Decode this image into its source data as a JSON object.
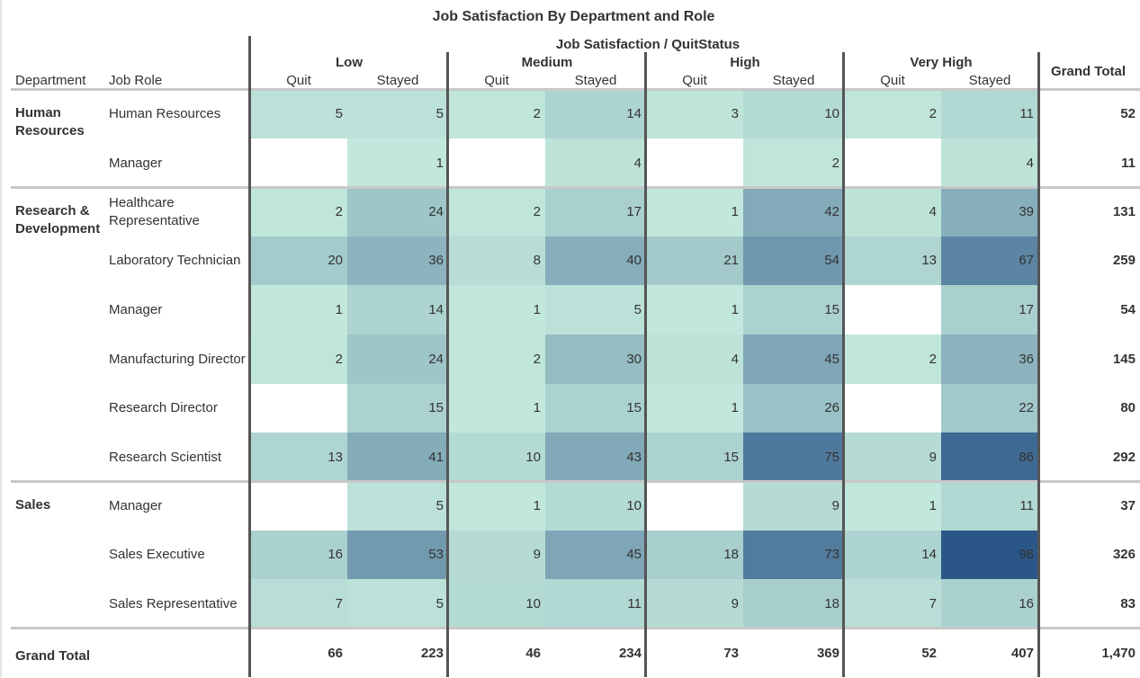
{
  "chart_data": {
    "type": "table",
    "title": "Job Satisfaction By Department and Role",
    "column_header": "Job Satisfaction / QuitStatus",
    "row_headers": [
      "Department",
      "Job Role"
    ],
    "levels": [
      "Low",
      "Medium",
      "High",
      "Very High"
    ],
    "statuses": [
      "Quit",
      "Stayed"
    ],
    "grand_total_label": "Grand Total",
    "color_scale": {
      "min_color": "#c2e7dc",
      "max_color": "#2b5788"
    },
    "departments": [
      {
        "name": "Human Resources",
        "rows": [
          {
            "role": "Human Resources",
            "values": [
              5,
              5,
              2,
              14,
              3,
              10,
              2,
              11
            ],
            "total": "52"
          },
          {
            "role": "Manager",
            "values": [
              null,
              1,
              null,
              4,
              null,
              2,
              null,
              4
            ],
            "total": "11"
          }
        ]
      },
      {
        "name": "Research & Development",
        "rows": [
          {
            "role": "Healthcare Representative",
            "values": [
              2,
              24,
              2,
              17,
              1,
              42,
              4,
              39
            ],
            "total": "131"
          },
          {
            "role": "Laboratory Technician",
            "values": [
              20,
              36,
              8,
              40,
              21,
              54,
              13,
              67
            ],
            "total": "259"
          },
          {
            "role": "Manager",
            "values": [
              1,
              14,
              1,
              5,
              1,
              15,
              null,
              17
            ],
            "total": "54"
          },
          {
            "role": "Manufacturing Director",
            "values": [
              2,
              24,
              2,
              30,
              4,
              45,
              2,
              36
            ],
            "total": "145"
          },
          {
            "role": "Research Director",
            "values": [
              null,
              15,
              1,
              15,
              1,
              26,
              null,
              22
            ],
            "total": "80"
          },
          {
            "role": "Research Scientist",
            "values": [
              13,
              41,
              10,
              43,
              15,
              75,
              9,
              86
            ],
            "total": "292"
          }
        ]
      },
      {
        "name": "Sales",
        "rows": [
          {
            "role": "Manager",
            "values": [
              null,
              5,
              1,
              10,
              null,
              9,
              1,
              11
            ],
            "total": "37"
          },
          {
            "role": "Sales Executive",
            "values": [
              16,
              53,
              9,
              45,
              18,
              73,
              14,
              98
            ],
            "total": "326"
          },
          {
            "role": "Sales Representative",
            "values": [
              7,
              5,
              10,
              11,
              9,
              18,
              7,
              16
            ],
            "total": "83"
          }
        ]
      }
    ],
    "column_totals": [
      "66",
      "223",
      "46",
      "234",
      "73",
      "369",
      "52",
      "407"
    ],
    "overall_total": "1,470"
  }
}
